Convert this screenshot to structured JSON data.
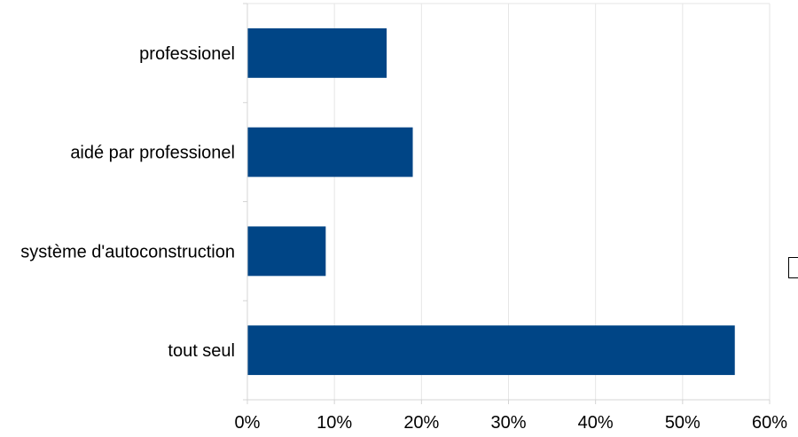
{
  "chart_data": {
    "type": "bar",
    "orientation": "horizontal",
    "title": "",
    "xlabel": "",
    "ylabel": "",
    "categories": [
      "professionel",
      "aidé par professionel",
      "système d'autoconstruction",
      "tout seul"
    ],
    "values": [
      16,
      19,
      9,
      56
    ],
    "unit": "%",
    "xlim": [
      0,
      60
    ],
    "x_ticks": [
      0,
      10,
      20,
      30,
      40,
      50,
      60
    ],
    "x_tick_labels": [
      "0%",
      "10%",
      "20%",
      "30%",
      "40%",
      "50%",
      "60%"
    ],
    "grid": true,
    "legend": "partially visible at right edge",
    "bar_color": "#004586"
  }
}
